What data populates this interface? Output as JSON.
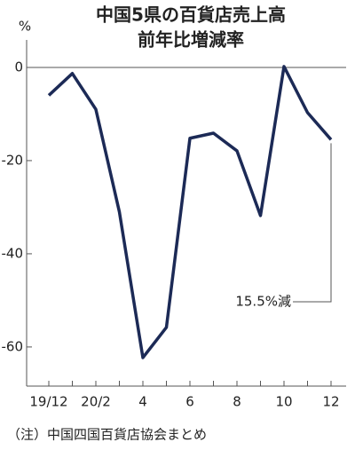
{
  "chart_data": {
    "type": "line",
    "title": [
      "中国5県の百貨店売上高",
      "前年比増減率"
    ],
    "y_label": "%",
    "categories": [
      "19/12",
      null,
      "20/2",
      null,
      "4",
      null,
      "6",
      null,
      "8",
      null,
      "10",
      null,
      "12"
    ],
    "series": [
      {
        "name": null,
        "color": "#1c2a56",
        "values": [
          -6,
          -1.3,
          -9,
          -31,
          -62.3,
          -55.8,
          -15.2,
          -14.1,
          -17.9,
          -31.8,
          0.2,
          -9.7,
          -15.5
        ]
      }
    ],
    "ylim": [
      -68.4,
      5.9
    ],
    "yticks": [
      0,
      -20,
      -40,
      -60
    ],
    "annotation": "15.5%減",
    "source": "（注）中国四国百貨店協会まとめ"
  }
}
